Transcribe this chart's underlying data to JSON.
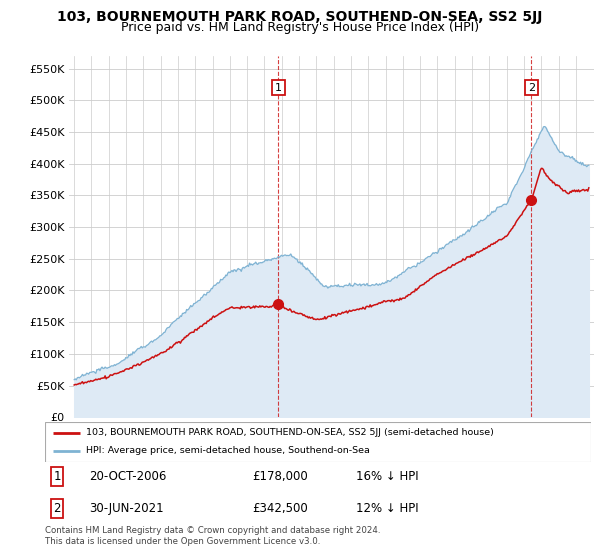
{
  "title": "103, BOURNEMOUTH PARK ROAD, SOUTHEND-ON-SEA, SS2 5JJ",
  "subtitle": "Price paid vs. HM Land Registry's House Price Index (HPI)",
  "yticks": [
    0,
    50000,
    100000,
    150000,
    200000,
    250000,
    300000,
    350000,
    400000,
    450000,
    500000,
    550000
  ],
  "ylim": [
    0,
    570000
  ],
  "xlim_start": 1995.0,
  "xlim_end": 2024.9,
  "purchase1_x": 2006.8,
  "purchase1_y": 178000,
  "purchase2_x": 2021.42,
  "purchase2_y": 342500,
  "legend_line1": "103, BOURNEMOUTH PARK ROAD, SOUTHEND-ON-SEA, SS2 5JJ (semi-detached house)",
  "legend_line2": "HPI: Average price, semi-detached house, Southend-on-Sea",
  "table_row1": [
    "1",
    "20-OCT-2006",
    "£178,000",
    "16% ↓ HPI"
  ],
  "table_row2": [
    "2",
    "30-JUN-2021",
    "£342,500",
    "12% ↓ HPI"
  ],
  "footnote": "Contains HM Land Registry data © Crown copyright and database right 2024.\nThis data is licensed under the Open Government Licence v3.0.",
  "hpi_color": "#7fb3d3",
  "property_color": "#cc1111",
  "fill_color": "#deeaf5",
  "background_color": "#ffffff",
  "grid_color": "#cccccc",
  "title_fontsize": 10,
  "subtitle_fontsize": 9
}
